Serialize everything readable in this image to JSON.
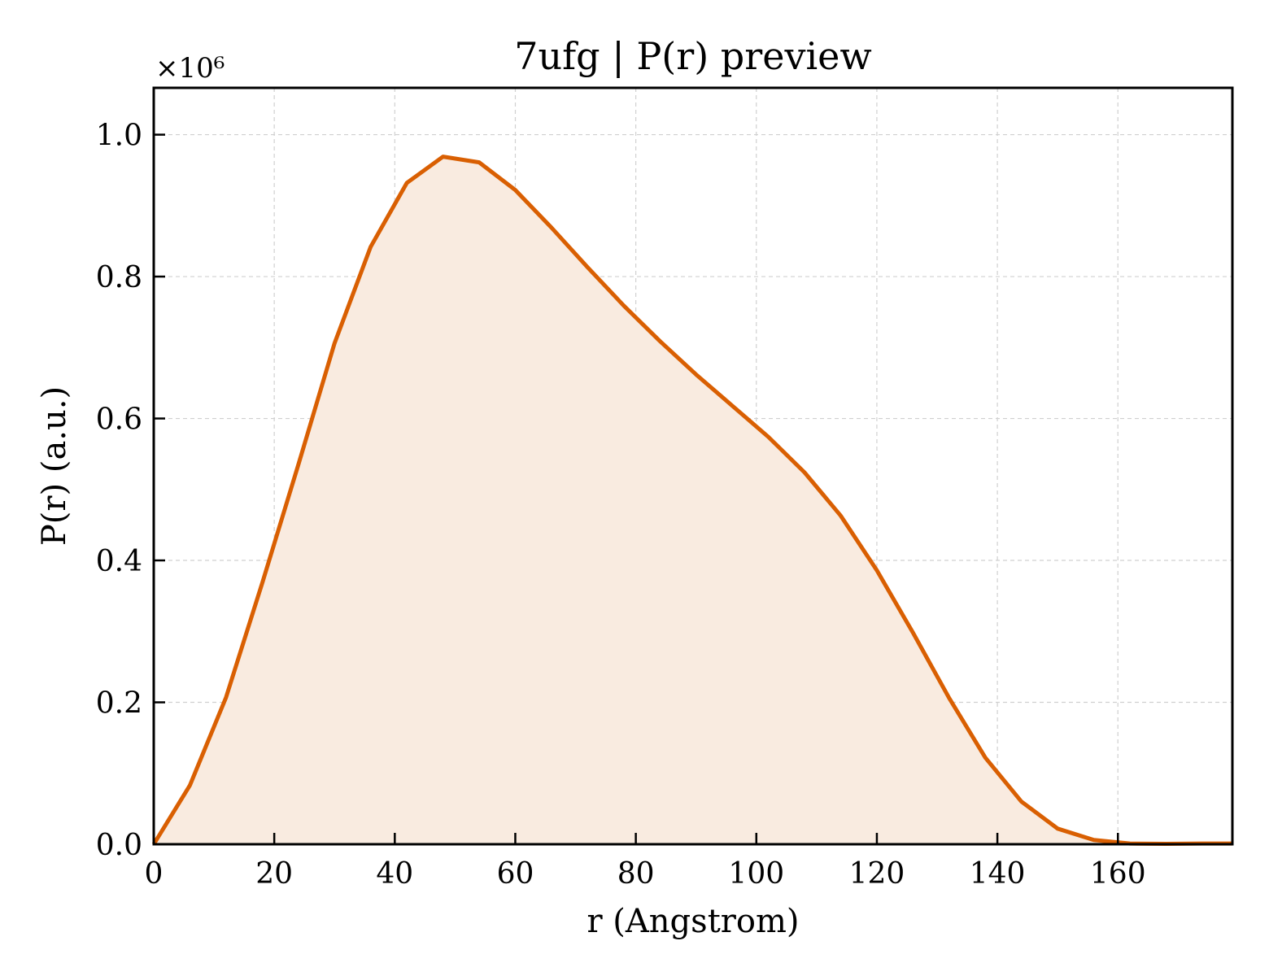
{
  "chart_data": {
    "type": "area",
    "title": "7ufg | P(r) preview",
    "xlabel": "r (Angstrom)",
    "ylabel": "P(r) (a.u.)",
    "y_scale_label": "×10⁶",
    "y_multiplier": 1000000,
    "xlim": [
      0,
      179
    ],
    "ylim": [
      0,
      1.066
    ],
    "x_ticks": [
      0,
      20,
      40,
      60,
      80,
      100,
      120,
      140,
      160
    ],
    "y_ticks": [
      0.0,
      0.2,
      0.4,
      0.6,
      0.8,
      1.0
    ],
    "x_tick_labels": [
      "0",
      "20",
      "40",
      "60",
      "80",
      "100",
      "120",
      "140",
      "160"
    ],
    "y_tick_labels": [
      "0.0",
      "0.2",
      "0.4",
      "0.6",
      "0.8",
      "1.0"
    ],
    "grid": true,
    "legend": "none",
    "line_color": "#d95f02",
    "fill_color": "#f9ebe0",
    "series": [
      {
        "x": [
          0,
          6,
          12,
          18,
          24,
          30,
          36,
          42,
          48,
          54,
          60,
          66,
          72,
          78,
          84,
          90,
          96,
          102,
          108,
          114,
          120,
          126,
          132,
          138,
          144,
          150,
          156,
          162,
          168,
          174,
          179
        ],
        "y": [
          0.0,
          0.083,
          0.207,
          0.368,
          0.535,
          0.706,
          0.842,
          0.932,
          0.969,
          0.961,
          0.922,
          0.869,
          0.813,
          0.759,
          0.709,
          0.662,
          0.618,
          0.574,
          0.524,
          0.463,
          0.386,
          0.298,
          0.206,
          0.122,
          0.06,
          0.022,
          0.006,
          0.001,
          0.0005,
          0.001,
          0.001
        ]
      }
    ]
  }
}
